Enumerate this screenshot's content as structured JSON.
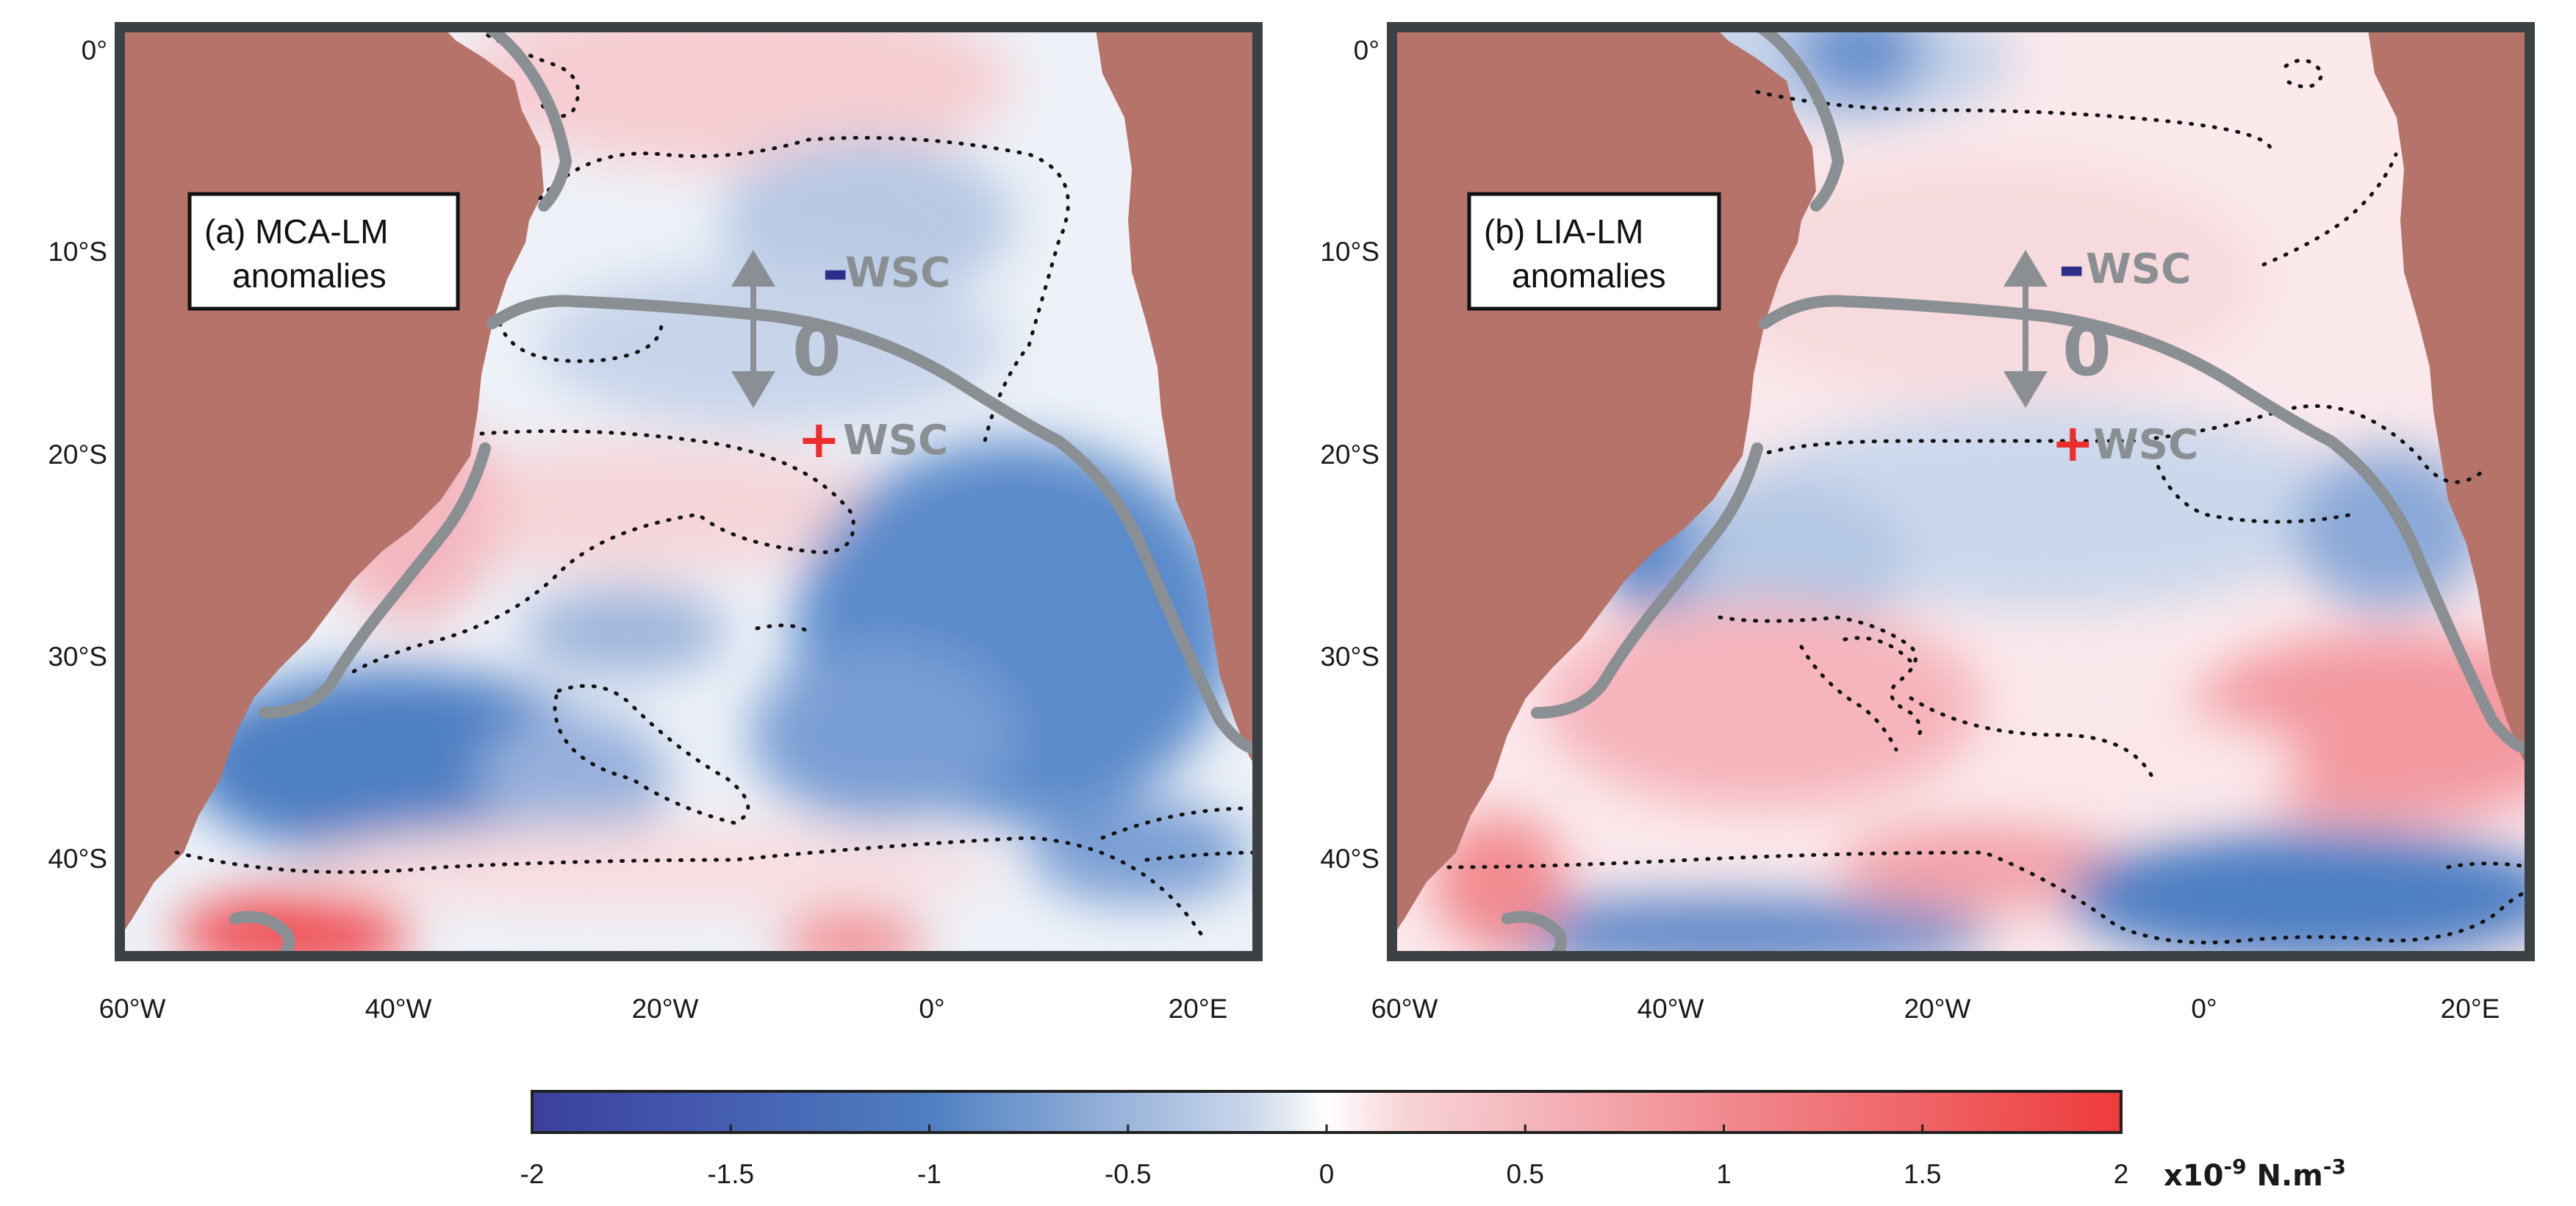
{
  "figure": {
    "x_ticks": [
      "60°W",
      "40°W",
      "20°W",
      "0°",
      "20°E"
    ],
    "y_ticks": [
      "0°",
      "10°S",
      "20°S",
      "30°S",
      "40°S"
    ],
    "panels": [
      {
        "line1": "(a) MCA-LM",
        "line2": "anomalies",
        "minus_sign": "-",
        "minus_label": "WSC",
        "plus_sign": "+",
        "plus_label": "WSC",
        "zero_label": "0"
      },
      {
        "line1": "(b) LIA-LM",
        "line2": "anomalies",
        "minus_sign": "-",
        "minus_label": "WSC",
        "plus_sign": "+",
        "plus_label": "WSC",
        "zero_label": "0"
      }
    ]
  },
  "colorbar": {
    "ticks": [
      "-2",
      "-1.5",
      "-1",
      "-0.5",
      "0",
      "0.5",
      "1",
      "1.5",
      "2"
    ],
    "unit_base": "x10",
    "unit_exp": "-9",
    "unit_mid": " N.m",
    "unit_exp2": "-3",
    "colors": {
      "neg": "#3b3f9e",
      "zero": "#ffffff",
      "pos": "#ee3b3b"
    }
  },
  "colors": {
    "land": "#b5736a",
    "frame": "#3b4144",
    "contour_line": "#8a8f93"
  }
}
